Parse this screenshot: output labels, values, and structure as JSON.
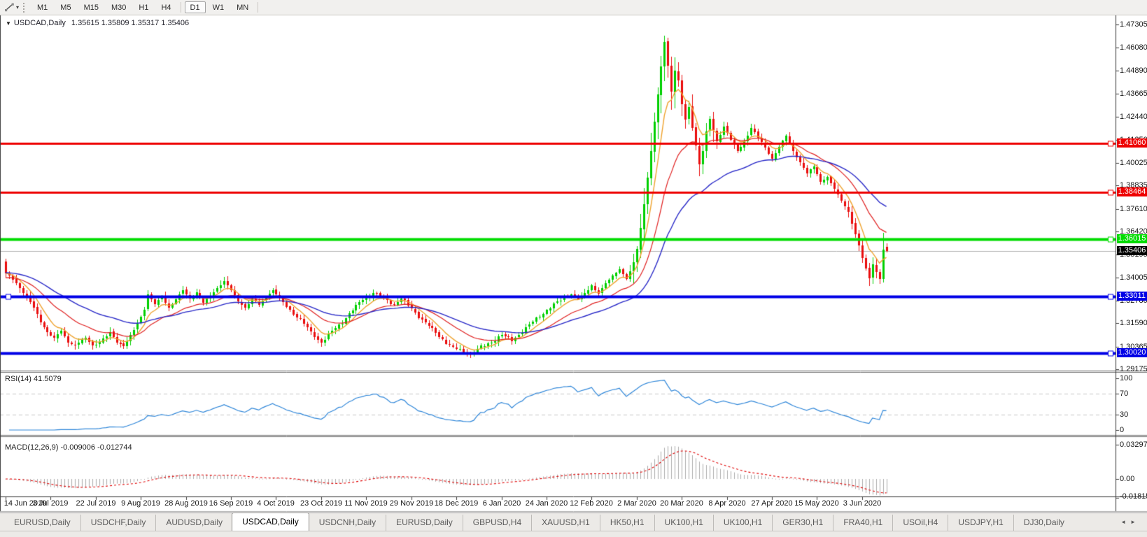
{
  "toolbar": {
    "timeframes": [
      "M1",
      "M5",
      "M15",
      "M30",
      "H1",
      "H4",
      "D1",
      "W1",
      "MN"
    ],
    "active_timeframe": "D1",
    "tool_icon": "line-studies-icon"
  },
  "chart": {
    "title": {
      "symbol": "USDCAD,Daily",
      "ohlc": "1.35615 1.35809 1.35317 1.35406"
    },
    "price_axis_ticks": [
      "1.47305",
      "1.46080",
      "1.44890",
      "1.43665",
      "1.42440",
      "1.41250",
      "1.40025",
      "1.38835",
      "1.37610",
      "1.36420",
      "1.35195",
      "1.34005",
      "1.32780",
      "1.31590",
      "1.30365",
      "1.29175"
    ],
    "horizontal_lines": [
      {
        "label": "1.41060",
        "value": 1.4106,
        "color": "#EE0000",
        "text_color": "#FFFFFF",
        "width": 3
      },
      {
        "label": "1.38464",
        "value": 1.38464,
        "color": "#EE0000",
        "text_color": "#FFFFFF",
        "width": 3
      },
      {
        "label": "1.36015",
        "value": 1.36015,
        "color": "#00DC00",
        "text_color": "#FFFFFF",
        "width": 4
      },
      {
        "label": "1.33011",
        "value": 1.33011,
        "color": "#0000E6",
        "text_color": "#FFFFFF",
        "width": 4
      },
      {
        "label": "1.30020",
        "value": 1.3002,
        "color": "#0000E6",
        "text_color": "#FFFFFF",
        "width": 4
      }
    ],
    "current_price": {
      "label": "1.35406",
      "value": 1.35406,
      "line_color": "#B4B4B4",
      "badge_bg": "#000000",
      "text_color": "#FFFFFF"
    },
    "colors": {
      "bull": "#00CF00",
      "bear": "#EA0D0D",
      "ma_fast": "#EFA32F",
      "ma_mid": "#E02020",
      "ma_slow": "#2929C8",
      "rsi": "#2E86D9",
      "macd_hist": "#ABABAB",
      "macd_signal": "#E00000",
      "level_dash": "#C4C4C4"
    }
  },
  "rsi_panel": {
    "label": "RSI(14) 41.5079",
    "value": 41.5079,
    "scale_labels": [
      "100",
      "70",
      "30",
      "0"
    ],
    "scale_values": [
      100,
      70,
      30,
      0
    ],
    "dashed_levels": [
      70,
      30
    ]
  },
  "macd_panel": {
    "label": "MACD(12,26,9) -0.009006 -0.012744",
    "macd_value": -0.009006,
    "signal_value": -0.012744,
    "scale_labels": [
      "0.032972",
      "0.00",
      "-0.018154"
    ],
    "scale_values": [
      0.032972,
      0.0,
      -0.018154
    ]
  },
  "tabs": {
    "items": [
      "EURUSD,Daily",
      "USDCHF,Daily",
      "AUDUSD,Daily",
      "USDCAD,Daily",
      "USDCNH,Daily",
      "EURUSD,Daily",
      "GBPUSD,H4",
      "XAUUSD,H1",
      "HK50,H1",
      "UK100,H1",
      "UK100,H1",
      "GER30,H1",
      "FRA40,H1",
      "USOil,H4",
      "USDJPY,H1",
      "DJ30,Daily"
    ],
    "active_index": 3
  },
  "chart_data": {
    "type": "candlestick",
    "symbol": "USDCAD",
    "timeframe": "Daily",
    "bar_count": 255,
    "bars_per_label": 13,
    "x_labels": [
      "14 Jun 2019",
      "3 Jul 2019",
      "22 Jul 2019",
      "9 Aug 2019",
      "28 Aug 2019",
      "16 Sep 2019",
      "4 Oct 2019",
      "23 Oct 2019",
      "11 Nov 2019",
      "29 Nov 2019",
      "18 Dec 2019",
      "6 Jan 2020",
      "24 Jan 2020",
      "12 Feb 2020",
      "2 Mar 2020",
      "20 Mar 2020",
      "8 Apr 2020",
      "27 Apr 2020",
      "15 May 2020",
      "3 Jun 2020"
    ],
    "price_range": {
      "min": 1.29063,
      "max": 1.47678,
      "tick_step": 0.01225
    },
    "last_candle": {
      "open": 1.35615,
      "high": 1.35809,
      "low": 1.35317,
      "close": 1.35406
    },
    "close_anchors": [
      [
        0,
        1.342
      ],
      [
        2,
        1.3392
      ],
      [
        4,
        1.3345
      ],
      [
        6,
        1.3298
      ],
      [
        8,
        1.3242
      ],
      [
        10,
        1.3168
      ],
      [
        12,
        1.3112
      ],
      [
        14,
        1.3078
      ],
      [
        16,
        1.3122
      ],
      [
        18,
        1.306
      ],
      [
        20,
        1.3044
      ],
      [
        23,
        1.308
      ],
      [
        25,
        1.3044
      ],
      [
        28,
        1.307
      ],
      [
        30,
        1.3112
      ],
      [
        32,
        1.3062
      ],
      [
        34,
        1.304
      ],
      [
        36,
        1.3092
      ],
      [
        38,
        1.3158
      ],
      [
        40,
        1.3232
      ],
      [
        41,
        1.3312
      ],
      [
        43,
        1.3258
      ],
      [
        45,
        1.33
      ],
      [
        47,
        1.324
      ],
      [
        49,
        1.3285
      ],
      [
        51,
        1.3332
      ],
      [
        53,
        1.3288
      ],
      [
        55,
        1.332
      ],
      [
        57,
        1.3265
      ],
      [
        59,
        1.3302
      ],
      [
        61,
        1.3345
      ],
      [
        63,
        1.338
      ],
      [
        65,
        1.3332
      ],
      [
        67,
        1.3275
      ],
      [
        69,
        1.324
      ],
      [
        71,
        1.3285
      ],
      [
        73,
        1.3255
      ],
      [
        75,
        1.33
      ],
      [
        77,
        1.3332
      ],
      [
        79,
        1.329
      ],
      [
        81,
        1.3245
      ],
      [
        84,
        1.3195
      ],
      [
        87,
        1.3135
      ],
      [
        89,
        1.309
      ],
      [
        91,
        1.3058
      ],
      [
        94,
        1.3115
      ],
      [
        97,
        1.3168
      ],
      [
        100,
        1.3228
      ],
      [
        103,
        1.3285
      ],
      [
        106,
        1.332
      ],
      [
        109,
        1.329
      ],
      [
        112,
        1.3258
      ],
      [
        114,
        1.3288
      ],
      [
        117,
        1.3235
      ],
      [
        120,
        1.318
      ],
      [
        123,
        1.3125
      ],
      [
        126,
        1.3075
      ],
      [
        129,
        1.3028
      ],
      [
        132,
        1.301
      ],
      [
        134,
        1.2998
      ],
      [
        137,
        1.3032
      ],
      [
        140,
        1.3062
      ],
      [
        143,
        1.3098
      ],
      [
        146,
        1.3068
      ],
      [
        149,
        1.3118
      ],
      [
        152,
        1.3165
      ],
      [
        155,
        1.3215
      ],
      [
        158,
        1.3255
      ],
      [
        161,
        1.3295
      ],
      [
        163,
        1.3312
      ],
      [
        165,
        1.3285
      ],
      [
        167,
        1.3315
      ],
      [
        169,
        1.3358
      ],
      [
        171,
        1.3315
      ],
      [
        173,
        1.3368
      ],
      [
        175,
        1.3408
      ],
      [
        177,
        1.3445
      ],
      [
        179,
        1.3392
      ],
      [
        180,
        1.3428
      ],
      [
        181,
        1.348
      ],
      [
        182,
        1.355
      ],
      [
        183,
        1.3658
      ],
      [
        184,
        1.379
      ],
      [
        185,
        1.3925
      ],
      [
        186,
        1.4065
      ],
      [
        187,
        1.4218
      ],
      [
        188,
        1.4358
      ],
      [
        189,
        1.4508
      ],
      [
        190,
        1.4642
      ],
      [
        191,
        1.4515
      ],
      [
        192,
        1.438
      ],
      [
        193,
        1.449
      ],
      [
        194,
        1.4432
      ],
      [
        195,
        1.431
      ],
      [
        196,
        1.423
      ],
      [
        197,
        1.4295
      ],
      [
        198,
        1.419
      ],
      [
        199,
        1.4095
      ],
      [
        200,
        1.3995
      ],
      [
        201,
        1.4065
      ],
      [
        202,
        1.4165
      ],
      [
        203,
        1.4235
      ],
      [
        205,
        1.4115
      ],
      [
        207,
        1.4195
      ],
      [
        209,
        1.4125
      ],
      [
        211,
        1.4065
      ],
      [
        213,
        1.4115
      ],
      [
        215,
        1.4185
      ],
      [
        217,
        1.4135
      ],
      [
        219,
        1.4085
      ],
      [
        221,
        1.4025
      ],
      [
        223,
        1.4085
      ],
      [
        225,
        1.4145
      ],
      [
        227,
        1.4065
      ],
      [
        229,
        1.4005
      ],
      [
        231,
        1.3945
      ],
      [
        233,
        1.3985
      ],
      [
        235,
        1.3905
      ],
      [
        237,
        1.3925
      ],
      [
        239,
        1.3865
      ],
      [
        241,
        1.3805
      ],
      [
        243,
        1.3745
      ],
      [
        244,
        1.3685
      ],
      [
        245,
        1.3625
      ],
      [
        246,
        1.3565
      ],
      [
        247,
        1.3505
      ],
      [
        248,
        1.3445
      ],
      [
        249,
        1.3398
      ],
      [
        250,
        1.347
      ],
      [
        251,
        1.3425
      ],
      [
        252,
        1.339
      ],
      [
        253,
        1.3545
      ],
      [
        254,
        1.35406
      ]
    ],
    "ma_lines": [
      {
        "name": "fast",
        "period": 7,
        "color": "#EFA32F"
      },
      {
        "name": "mid",
        "period": 20,
        "color": "#E02020"
      },
      {
        "name": "slow",
        "period": 42,
        "color": "#2929C8"
      }
    ],
    "indicators": [
      {
        "name": "RSI",
        "period": 14,
        "current": 41.5079
      },
      {
        "name": "MACD",
        "params": [
          12,
          26,
          9
        ],
        "macd": -0.009006,
        "signal": -0.012744
      }
    ]
  }
}
